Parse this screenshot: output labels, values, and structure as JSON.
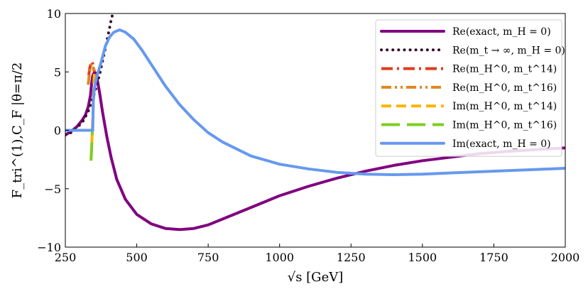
{
  "chart_data": {
    "type": "line",
    "title": "",
    "xlabel": "√s  [GeV]",
    "ylabel": "F_tri^(1),C_F |θ=π/2",
    "xlim": [
      250,
      2000
    ],
    "ylim": [
      -10,
      10
    ],
    "xticks": [
      "250",
      "500",
      "750",
      "1000",
      "1250",
      "1500",
      "1750",
      "2000"
    ],
    "yticks": [
      "10",
      "5",
      "0",
      "−5",
      "−10"
    ],
    "grid": false,
    "legend_position": "top-right",
    "series": [
      {
        "name": "Re(exact, m_H = 0)",
        "color": "#800080",
        "style": "solid",
        "points": [
          [
            250,
            -0.4
          ],
          [
            270,
            -0.1
          ],
          [
            290,
            0.3
          ],
          [
            310,
            0.9
          ],
          [
            320,
            1.3
          ],
          [
            330,
            2.0
          ],
          [
            338,
            3.0
          ],
          [
            342,
            4.0
          ],
          [
            346,
            4.7
          ],
          [
            350,
            4.9
          ],
          [
            356,
            4.9
          ],
          [
            362,
            4.3
          ],
          [
            370,
            3.2
          ],
          [
            380,
            1.6
          ],
          [
            395,
            -0.5
          ],
          [
            410,
            -2.3
          ],
          [
            430,
            -4.2
          ],
          [
            460,
            -5.9
          ],
          [
            500,
            -7.2
          ],
          [
            550,
            -8.0
          ],
          [
            600,
            -8.4
          ],
          [
            650,
            -8.5
          ],
          [
            700,
            -8.4
          ],
          [
            750,
            -8.1
          ],
          [
            800,
            -7.6
          ],
          [
            900,
            -6.6
          ],
          [
            1000,
            -5.6
          ],
          [
            1100,
            -4.8
          ],
          [
            1200,
            -4.1
          ],
          [
            1300,
            -3.5
          ],
          [
            1400,
            -3.0
          ],
          [
            1500,
            -2.6
          ],
          [
            1600,
            -2.3
          ],
          [
            1700,
            -2.0
          ],
          [
            1800,
            -1.8
          ],
          [
            1900,
            -1.65
          ],
          [
            2000,
            -1.5
          ]
        ]
      },
      {
        "name": "Re(m_t → ∞, m_H = 0)",
        "color": "#3a0a2a",
        "style": "dotted",
        "points": [
          [
            250,
            -0.4
          ],
          [
            270,
            -0.2
          ],
          [
            290,
            0.2
          ],
          [
            310,
            0.7
          ],
          [
            330,
            1.6
          ],
          [
            350,
            3.0
          ],
          [
            370,
            4.8
          ],
          [
            390,
            7.0
          ],
          [
            410,
            9.4
          ],
          [
            416,
            10.0
          ]
        ]
      },
      {
        "name": "Re(m_H^0, m_t^14)",
        "color": "#e03a1e",
        "style": "dashdot",
        "points": [
          [
            332,
            4.7
          ],
          [
            336,
            5.4
          ],
          [
            340,
            5.7
          ],
          [
            344,
            5.9
          ],
          [
            348,
            5.5
          ],
          [
            352,
            5.0
          ]
        ]
      },
      {
        "name": "Re(m_H^0, m_t^16)",
        "color": "#e0861e",
        "style": "dashdotdot",
        "points": [
          [
            330,
            3.9
          ],
          [
            334,
            4.8
          ],
          [
            338,
            5.4
          ],
          [
            342,
            5.7
          ],
          [
            346,
            5.6
          ],
          [
            350,
            5.1
          ]
        ]
      },
      {
        "name": "Im(m_H^0, m_t^14)",
        "color": "#ffb400",
        "style": "dashed",
        "points": [
          [
            340,
            -2.4
          ],
          [
            342,
            -1.5
          ],
          [
            344,
            -0.3
          ],
          [
            346,
            1.0
          ],
          [
            348,
            2.5
          ],
          [
            350,
            4.0
          ],
          [
            352,
            5.2
          ]
        ]
      },
      {
        "name": "Im(m_H^0, m_t^16)",
        "color": "#80cc20",
        "style": "dashed-long",
        "points": [
          [
            340,
            -2.6
          ],
          [
            342,
            -1.6
          ],
          [
            344,
            -0.4
          ],
          [
            345,
            0.2
          ]
        ]
      },
      {
        "name": "Im(exact, m_H = 0)",
        "color": "#6699ee",
        "style": "solid",
        "points": [
          [
            250,
            0.0
          ],
          [
            300,
            0.0
          ],
          [
            340,
            0.0
          ],
          [
            346,
            0.0
          ],
          [
            348,
            2.5
          ],
          [
            352,
            3.6
          ],
          [
            360,
            4.6
          ],
          [
            375,
            5.8
          ],
          [
            390,
            7.2
          ],
          [
            405,
            8.0
          ],
          [
            420,
            8.4
          ],
          [
            440,
            8.6
          ],
          [
            460,
            8.4
          ],
          [
            490,
            7.8
          ],
          [
            520,
            6.8
          ],
          [
            560,
            5.3
          ],
          [
            600,
            3.8
          ],
          [
            650,
            2.2
          ],
          [
            700,
            0.9
          ],
          [
            750,
            -0.2
          ],
          [
            800,
            -1.0
          ],
          [
            900,
            -2.2
          ],
          [
            1000,
            -2.9
          ],
          [
            1100,
            -3.3
          ],
          [
            1200,
            -3.6
          ],
          [
            1300,
            -3.75
          ],
          [
            1400,
            -3.8
          ],
          [
            1500,
            -3.75
          ],
          [
            1600,
            -3.65
          ],
          [
            1700,
            -3.55
          ],
          [
            1800,
            -3.45
          ],
          [
            1900,
            -3.35
          ],
          [
            2000,
            -3.25
          ]
        ]
      }
    ]
  }
}
